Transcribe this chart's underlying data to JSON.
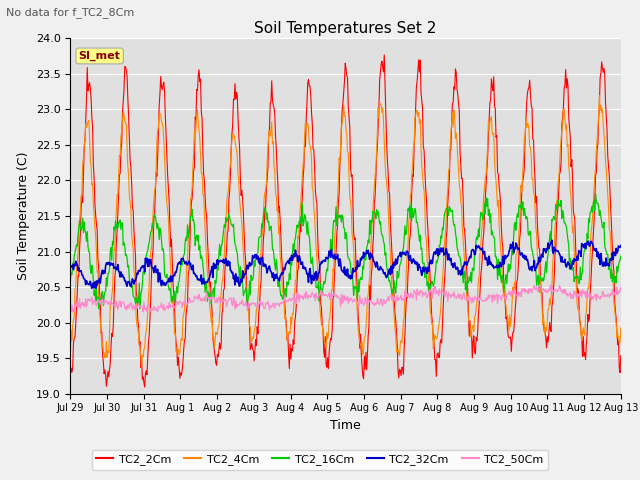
{
  "title": "Soil Temperatures Set 2",
  "subtitle": "No data for f_TC2_8Cm",
  "xlabel": "Time",
  "ylabel": "Soil Temperature (C)",
  "ylim": [
    19.0,
    24.0
  ],
  "yticks": [
    19.0,
    19.5,
    20.0,
    20.5,
    21.0,
    21.5,
    22.0,
    22.5,
    23.0,
    23.5,
    24.0
  ],
  "series_colors": {
    "TC2_2Cm": "#ff0000",
    "TC2_4Cm": "#ff8800",
    "TC2_16Cm": "#00cc00",
    "TC2_32Cm": "#0000cc",
    "TC2_50Cm": "#ff88cc"
  },
  "annotation_text": "SI_met",
  "annotation_color": "#880000",
  "annotation_bg": "#ffff88",
  "x_tick_labels": [
    "Jul 29",
    "Jul 30",
    "Jul 31",
    "Aug 1",
    "Aug 2",
    "Aug 3",
    "Aug 4",
    "Aug 5",
    "Aug 6",
    "Aug 7",
    "Aug 8",
    "Aug 9",
    "Aug 10",
    "Aug 11",
    "Aug 12",
    "Aug 13"
  ],
  "num_points": 720,
  "total_days": 15
}
